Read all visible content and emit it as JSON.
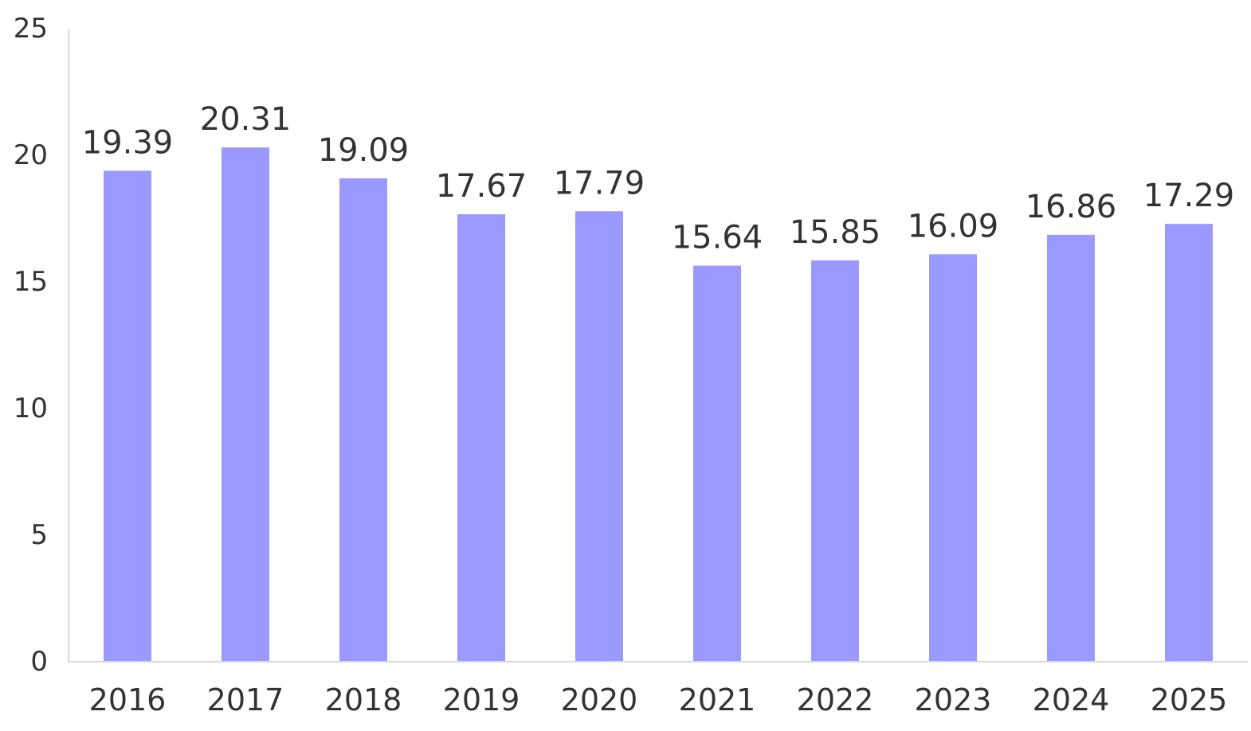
{
  "chart_data": {
    "type": "bar",
    "categories": [
      "2016",
      "2017",
      "2018",
      "2019",
      "2020",
      "2021",
      "2022",
      "2023",
      "2024",
      "2025"
    ],
    "values": [
      19.39,
      20.31,
      19.09,
      17.67,
      17.79,
      15.64,
      15.85,
      16.09,
      16.86,
      17.29
    ],
    "data_labels": [
      "19.39",
      "20.31",
      "19.09",
      "17.67",
      "17.79",
      "15.64",
      "15.85",
      "16.09",
      "16.86",
      "17.29"
    ],
    "y_ticks": [
      "0",
      "5",
      "10",
      "15",
      "20",
      "25"
    ],
    "ylim": [
      0,
      25
    ],
    "title": "",
    "xlabel": "",
    "ylabel": "",
    "grid": false,
    "legend": "none",
    "colors": {
      "bar": "#9999ff",
      "axis": "#d9d9d9",
      "text": "#333333"
    }
  }
}
